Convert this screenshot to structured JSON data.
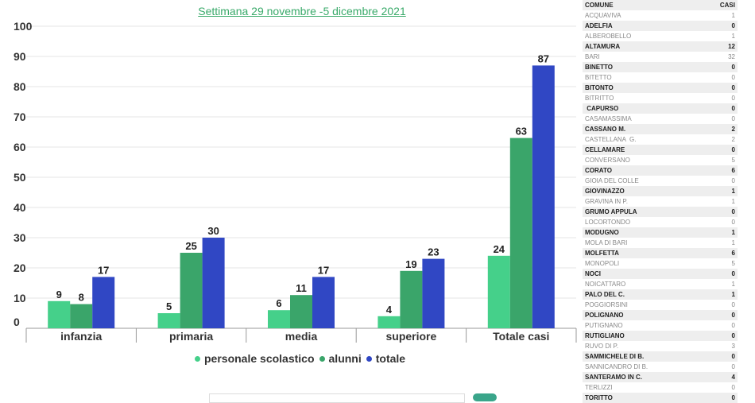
{
  "chart_data": {
    "type": "bar",
    "title": "Settimana 29 novembre -5 dicembre 2021",
    "categories": [
      "infanzia",
      "primaria",
      "media",
      "superiore",
      "Totale casi"
    ],
    "series": [
      {
        "name": "personale scolastico",
        "color": "#45d08a",
        "values": [
          9,
          5,
          6,
          4,
          24
        ]
      },
      {
        "name": "alunni",
        "color": "#3aa56a",
        "values": [
          8,
          25,
          11,
          19,
          63
        ]
      },
      {
        "name": "totale",
        "color": "#3047c4",
        "values": [
          17,
          30,
          17,
          23,
          87
        ]
      }
    ],
    "ylim": [
      0,
      100
    ],
    "yticks": [
      0,
      10,
      20,
      30,
      40,
      50,
      60,
      70,
      80,
      90,
      100
    ],
    "grid": true,
    "legend": "bottom"
  },
  "table": {
    "headers": [
      "COMUNE",
      "CASI"
    ],
    "rows": [
      [
        "ACQUAVIVA",
        "1"
      ],
      [
        "ADELFIA",
        "0"
      ],
      [
        "ALBEROBELLO",
        "1"
      ],
      [
        "ALTAMURA",
        "12"
      ],
      [
        "BARI",
        "32"
      ],
      [
        "BINETTO",
        "0"
      ],
      [
        "BITETTO",
        "0"
      ],
      [
        "BITONTO",
        "0"
      ],
      [
        "BITRITTO",
        "0"
      ],
      [
        " CAPURSO",
        "0"
      ],
      [
        "CASAMASSIMA",
        "0"
      ],
      [
        "CASSANO M.",
        "2"
      ],
      [
        "CASTELLANA  G.",
        "2"
      ],
      [
        "CELLAMARE",
        "0"
      ],
      [
        "CONVERSANO",
        "5"
      ],
      [
        "CORATO",
        "6"
      ],
      [
        "GIOIA DEL COLLE",
        "0"
      ],
      [
        "GIOVINAZZO",
        "1"
      ],
      [
        "GRAVINA IN P.",
        "1"
      ],
      [
        "GRUMO APPULA",
        "0"
      ],
      [
        "LOCORTONDO",
        "0"
      ],
      [
        "MODUGNO",
        "1"
      ],
      [
        "MOLA DI BARI",
        "1"
      ],
      [
        "MOLFETTA",
        "6"
      ],
      [
        "MONOPOLI",
        "5"
      ],
      [
        "NOCI",
        "0"
      ],
      [
        "NOICATTARO",
        "1"
      ],
      [
        "PALO DEL C.",
        "1"
      ],
      [
        "POGGIORSINI",
        "0"
      ],
      [
        "POLIGNANO",
        "0"
      ],
      [
        "PUTIGNANO",
        "0"
      ],
      [
        "RUTIGLIANO",
        "0"
      ],
      [
        "RUVO DI P.",
        "3"
      ],
      [
        "SAMMICHELE DI B.",
        "0"
      ],
      [
        "SANNICANDRO DI B.",
        "0"
      ],
      [
        "SANTERAMO IN C.",
        "4"
      ],
      [
        "TERLIZZI",
        "0"
      ],
      [
        "TORITTO",
        "0"
      ]
    ]
  }
}
